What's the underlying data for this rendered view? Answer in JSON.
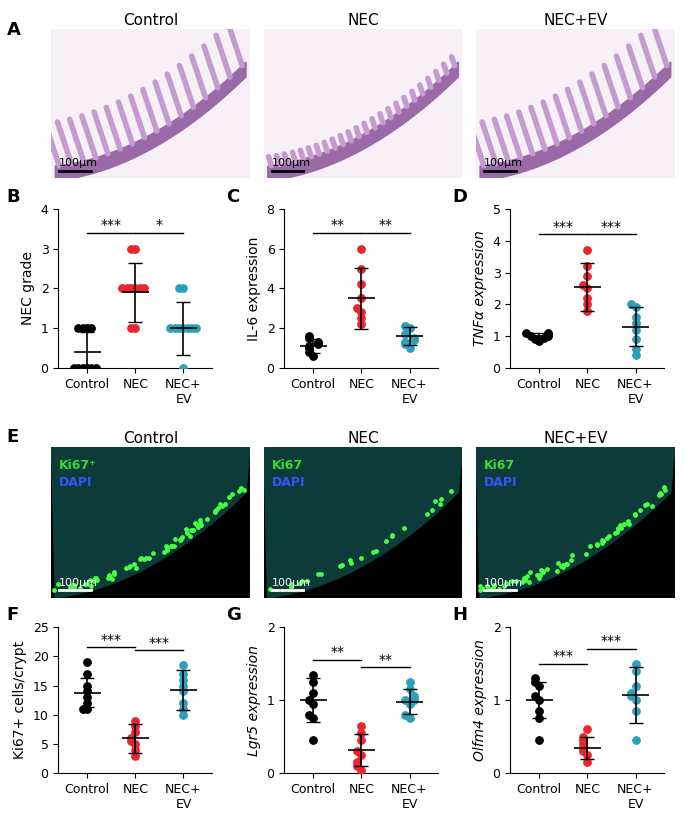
{
  "chart_data": [
    {
      "panel": "B",
      "type": "scatter",
      "y_label": "NEC grade",
      "categories": [
        "Control",
        "NEC",
        "NEC+\nEV"
      ],
      "groups": [
        {
          "color": "#000000",
          "values": [
            0,
            0,
            0,
            0,
            0,
            0,
            1,
            1,
            1,
            1
          ],
          "mean": 0.4,
          "sd": 0.5
        },
        {
          "color": "#e8262b",
          "values": [
            1,
            1,
            2,
            2,
            2,
            2,
            2,
            2,
            3,
            3
          ],
          "mean": 1.9,
          "sd": 0.75
        },
        {
          "color": "#2aa0b9",
          "values": [
            0,
            1,
            1,
            1,
            1,
            1,
            1,
            1,
            2,
            2
          ],
          "mean": 1.0,
          "sd": 0.67
        }
      ],
      "ylim": [
        0,
        4
      ],
      "yticks": [
        0,
        1,
        2,
        3,
        4
      ],
      "significance": [
        {
          "pair": [
            0,
            1
          ],
          "label": "***"
        },
        {
          "pair": [
            1,
            2
          ],
          "label": "*"
        }
      ]
    },
    {
      "panel": "C",
      "type": "scatter",
      "y_label": "IL-6 expression",
      "categories": [
        "Control",
        "NEC",
        "NEC+\nEV"
      ],
      "groups": [
        {
          "color": "#000000",
          "values": [
            0.6,
            0.8,
            1.0,
            1.1,
            1.2,
            1.3,
            1.5,
            1.6
          ],
          "mean": 1.1,
          "sd": 0.35
        },
        {
          "color": "#e8262b",
          "values": [
            2.2,
            2.5,
            2.8,
            3.0,
            3.5,
            4.2,
            5.0,
            6.0
          ],
          "mean": 3.5,
          "sd": 1.55
        },
        {
          "color": "#2aa0b9",
          "values": [
            1.0,
            1.2,
            1.3,
            1.4,
            1.5,
            1.7,
            2.0,
            2.1
          ],
          "mean": 1.6,
          "sd": 0.45
        }
      ],
      "ylim": [
        0,
        8
      ],
      "yticks": [
        0,
        2,
        4,
        6,
        8
      ],
      "significance": [
        {
          "pair": [
            0,
            1
          ],
          "label": "**"
        },
        {
          "pair": [
            1,
            2
          ],
          "label": "**"
        }
      ]
    },
    {
      "panel": "D",
      "type": "scatter",
      "y_label": "TNFα expression",
      "categories": [
        "Control",
        "NEC",
        "NEC+\nEV"
      ],
      "groups": [
        {
          "color": "#000000",
          "values": [
            0.85,
            0.9,
            0.95,
            1.0,
            1.0,
            1.05,
            1.1,
            1.1
          ],
          "mean": 1.0,
          "sd": 0.1
        },
        {
          "color": "#e8262b",
          "values": [
            1.8,
            2.0,
            2.2,
            2.5,
            2.6,
            2.9,
            3.2,
            3.7
          ],
          "mean": 2.55,
          "sd": 0.75
        },
        {
          "color": "#2aa0b9",
          "values": [
            0.4,
            0.6,
            0.9,
            1.2,
            1.4,
            1.6,
            1.9,
            2.0
          ],
          "mean": 1.3,
          "sd": 0.6
        }
      ],
      "ylim": [
        0,
        5
      ],
      "yticks": [
        0,
        1,
        2,
        3,
        4,
        5
      ],
      "significance": [
        {
          "pair": [
            0,
            1
          ],
          "label": "***"
        },
        {
          "pair": [
            1,
            2
          ],
          "label": "***"
        }
      ]
    },
    {
      "panel": "F",
      "type": "scatter",
      "y_label": "Ki67+ cells/crypt",
      "categories": [
        "Control",
        "NEC",
        "NEC+\nEV"
      ],
      "groups": [
        {
          "color": "#000000",
          "values": [
            11,
            11,
            12,
            13,
            14,
            15,
            17,
            19
          ],
          "mean": 13.8,
          "sd": 2.5
        },
        {
          "color": "#e8262b",
          "values": [
            3,
            4,
            5,
            5.5,
            6,
            7,
            8,
            9
          ],
          "mean": 6.0,
          "sd": 2.5
        },
        {
          "color": "#2aa0b9",
          "values": [
            10,
            11,
            12,
            14,
            15,
            16,
            17,
            18.5
          ],
          "mean": 14.3,
          "sd": 3.4
        }
      ],
      "ylim": [
        0,
        25
      ],
      "yticks": [
        0,
        5,
        10,
        15,
        20,
        25
      ],
      "significance": [
        {
          "pair": [
            0,
            1
          ],
          "label": "***"
        },
        {
          "pair": [
            1,
            2
          ],
          "label": "***"
        }
      ]
    },
    {
      "panel": "G",
      "type": "scatter",
      "y_label": "Lgr5 expression",
      "categories": [
        "Control",
        "NEC",
        "NEC+\nEV"
      ],
      "groups": [
        {
          "color": "#000000",
          "values": [
            0.45,
            0.75,
            0.8,
            0.95,
            1.0,
            1.1,
            1.25,
            1.35
          ],
          "mean": 1.0,
          "sd": 0.3
        },
        {
          "color": "#e8262b",
          "values": [
            0.05,
            0.1,
            0.15,
            0.25,
            0.3,
            0.45,
            0.55,
            0.65
          ],
          "mean": 0.32,
          "sd": 0.22
        },
        {
          "color": "#2aa0b9",
          "values": [
            0.75,
            0.8,
            0.95,
            1.0,
            1.0,
            1.05,
            1.15,
            1.25
          ],
          "mean": 0.98,
          "sd": 0.17
        }
      ],
      "ylim": [
        0,
        2
      ],
      "yticks": [
        0,
        1,
        2
      ],
      "significance": [
        {
          "pair": [
            0,
            1
          ],
          "label": "**"
        },
        {
          "pair": [
            1,
            2
          ],
          "label": "**"
        }
      ]
    },
    {
      "panel": "H",
      "type": "scatter",
      "y_label": "Olfm4 expression",
      "categories": [
        "Control",
        "NEC",
        "NEC+\nEV"
      ],
      "groups": [
        {
          "color": "#000000",
          "values": [
            0.45,
            0.75,
            0.85,
            1.0,
            1.05,
            1.2,
            1.25,
            1.3
          ],
          "mean": 1.0,
          "sd": 0.25
        },
        {
          "color": "#e8262b",
          "values": [
            0.15,
            0.25,
            0.3,
            0.35,
            0.4,
            0.45,
            0.5,
            0.6
          ],
          "mean": 0.35,
          "sd": 0.15
        },
        {
          "color": "#2aa0b9",
          "values": [
            0.45,
            0.85,
            1.0,
            1.05,
            1.1,
            1.2,
            1.4,
            1.5
          ],
          "mean": 1.07,
          "sd": 0.38
        }
      ],
      "ylim": [
        0,
        2
      ],
      "yticks": [
        0,
        1,
        2
      ],
      "significance": [
        {
          "pair": [
            0,
            1
          ],
          "label": "***"
        },
        {
          "pair": [
            1,
            2
          ],
          "label": "***"
        }
      ]
    }
  ],
  "images": [
    {
      "panel": "A",
      "kind": "histology",
      "titles": [
        "Control",
        "NEC",
        "NEC+EV"
      ],
      "scale_bar": "100µm"
    },
    {
      "panel": "E",
      "kind": "fluorescence",
      "titles": [
        "Control",
        "NEC",
        "NEC+EV"
      ],
      "scale_bar": "100µm",
      "stain_labels": [
        [
          {
            "text": "Ki67⁺",
            "color": "#33dd33"
          },
          {
            "text": "DAPI",
            "color": "#3355ff"
          }
        ],
        [
          {
            "text": "Ki67",
            "color": "#33dd33"
          },
          {
            "text": "DAPI",
            "color": "#3355ff"
          }
        ],
        [
          {
            "text": "Ki67",
            "color": "#33dd33"
          },
          {
            "text": "DAPI",
            "color": "#3355ff"
          }
        ]
      ]
    }
  ]
}
